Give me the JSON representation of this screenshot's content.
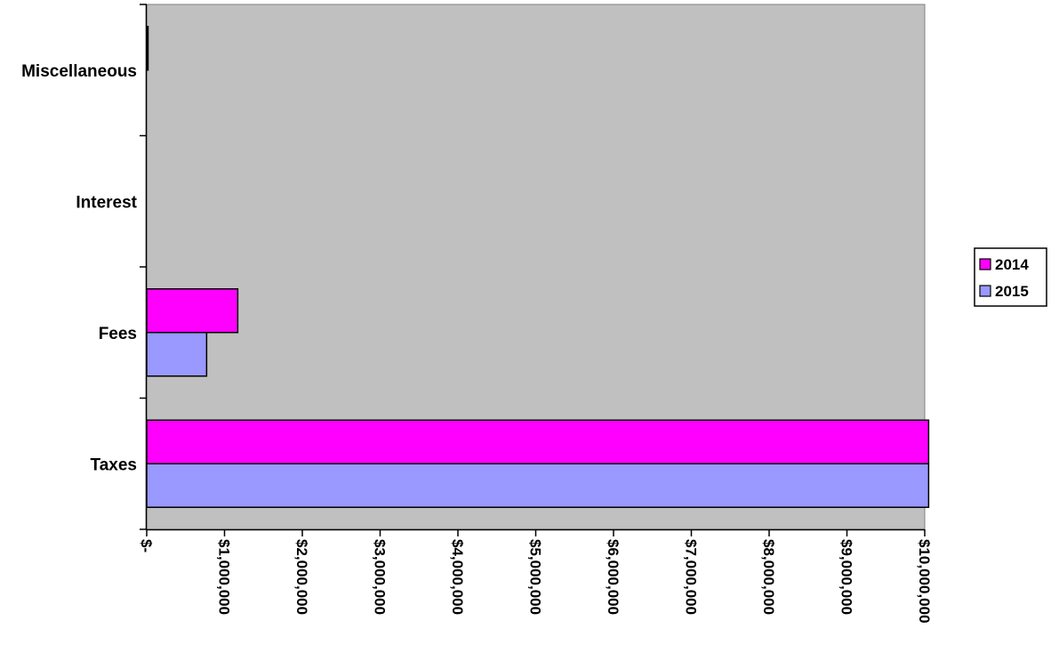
{
  "chart_data": {
    "type": "bar",
    "orientation": "horizontal",
    "categories": [
      "Taxes",
      "Fees",
      "Interest",
      "Miscellaneous"
    ],
    "series": [
      {
        "name": "2014",
        "color": "#FF00FF",
        "values": [
          10050000,
          1170000,
          0,
          8000
        ]
      },
      {
        "name": "2015",
        "color": "#9999FF",
        "values": [
          10050000,
          770000,
          0,
          0
        ]
      }
    ],
    "xlim": [
      0,
      10000000
    ],
    "x_ticks": [
      {
        "value": 0,
        "label": "$-"
      },
      {
        "value": 1000000,
        "label": "$1,000,000"
      },
      {
        "value": 2000000,
        "label": "$2,000,000"
      },
      {
        "value": 3000000,
        "label": "$3,000,000"
      },
      {
        "value": 4000000,
        "label": "$4,000,000"
      },
      {
        "value": 5000000,
        "label": "$5,000,000"
      },
      {
        "value": 6000000,
        "label": "$6,000,000"
      },
      {
        "value": 7000000,
        "label": "$7,000,000"
      },
      {
        "value": 8000000,
        "label": "$8,000,000"
      },
      {
        "value": 9000000,
        "label": "$9,000,000"
      },
      {
        "value": 10000000,
        "label": "$10,000,000"
      }
    ],
    "plot_background": "#C0C0C0",
    "grid": false,
    "legend_position": "right",
    "title": "",
    "xlabel": "",
    "ylabel": ""
  }
}
